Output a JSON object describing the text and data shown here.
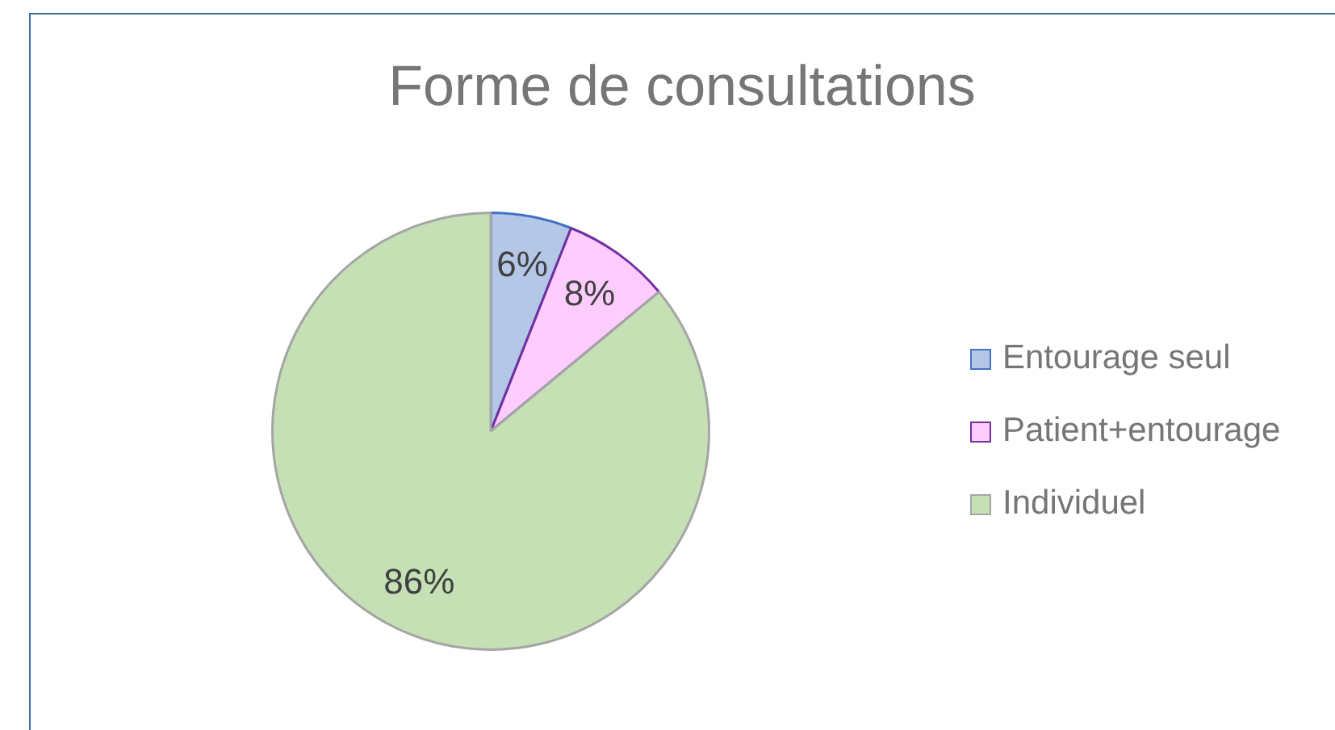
{
  "chart_data": {
    "type": "pie",
    "title": "Forme de consultations",
    "categories": [
      "Entourage seul",
      "Patient+entourage",
      "Individuel"
    ],
    "values": [
      6,
      8,
      86
    ],
    "colors": [
      "#b4c7e7",
      "#ffccff",
      "#c5e0b4"
    ],
    "value_labels": [
      "6%",
      "8%",
      "86%"
    ],
    "legend": "right"
  }
}
